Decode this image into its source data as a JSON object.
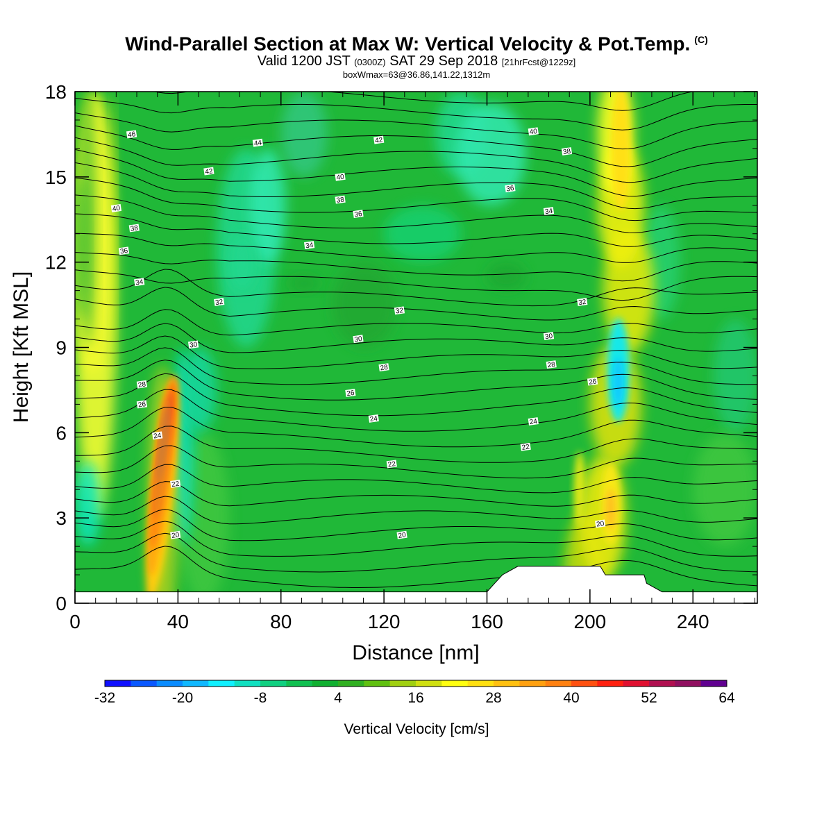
{
  "title": {
    "main": "Wind-Parallel Section at Max W: Vertical Velocity & Pot.Temp.",
    "copyright": "(C)",
    "valid_prefix": "Valid 1200 JST",
    "utc_part": "(0300Z)",
    "valid_date": "SAT 29 Sep 2018",
    "forecast_info": "[21hrFcst@1229z]",
    "box_info": "boxWmax=63@36.86,141.22,1312m"
  },
  "chart_data": {
    "type": "heatmap",
    "xlabel": "Distance [nm]",
    "ylabel": "Height [Kft MSL]",
    "xlim": [
      0,
      265
    ],
    "ylim": [
      0,
      18
    ],
    "x_ticks": [
      0,
      40,
      80,
      120,
      160,
      200,
      240
    ],
    "y_ticks": [
      0,
      3,
      6,
      9,
      12,
      15,
      18
    ],
    "colorbar": {
      "label": "Vertical Velocity [cm/s]",
      "range": [
        -32,
        64
      ],
      "step": 4,
      "tick_labels": [
        "-32",
        "-20",
        "-8",
        "4",
        "16",
        "28",
        "40",
        "52",
        "64"
      ],
      "colors": [
        "#1010ff",
        "#0a58ff",
        "#0a8cff",
        "#10b8ff",
        "#10f0ff",
        "#10e0c0",
        "#10d080",
        "#10c050",
        "#10b030",
        "#30b020",
        "#60c010",
        "#a0d010",
        "#d0e010",
        "#ffff10",
        "#ffe010",
        "#ffc010",
        "#ffa010",
        "#ff8010",
        "#ff5010",
        "#ff2010",
        "#e01030",
        "#b01050",
        "#901060",
        "#600090"
      ]
    },
    "isentrope_labels": [
      {
        "x": 22,
        "y": 16.5,
        "text": "46"
      },
      {
        "x": 71,
        "y": 16.2,
        "text": "44"
      },
      {
        "x": 118,
        "y": 16.3,
        "text": "42"
      },
      {
        "x": 178,
        "y": 16.6,
        "text": "40"
      },
      {
        "x": 52,
        "y": 15.2,
        "text": "42"
      },
      {
        "x": 103,
        "y": 15.0,
        "text": "40"
      },
      {
        "x": 191,
        "y": 15.9,
        "text": "38"
      },
      {
        "x": 16,
        "y": 13.9,
        "text": "40"
      },
      {
        "x": 103,
        "y": 14.2,
        "text": "38"
      },
      {
        "x": 169,
        "y": 14.6,
        "text": "36"
      },
      {
        "x": 184,
        "y": 13.8,
        "text": "34"
      },
      {
        "x": 23,
        "y": 13.2,
        "text": "38"
      },
      {
        "x": 110,
        "y": 13.7,
        "text": "36"
      },
      {
        "x": 19,
        "y": 12.4,
        "text": "36"
      },
      {
        "x": 91,
        "y": 12.6,
        "text": "34"
      },
      {
        "x": 25,
        "y": 11.3,
        "text": "34"
      },
      {
        "x": 56,
        "y": 10.6,
        "text": "32"
      },
      {
        "x": 197,
        "y": 10.6,
        "text": "32"
      },
      {
        "x": 126,
        "y": 10.3,
        "text": "32"
      },
      {
        "x": 46,
        "y": 9.1,
        "text": "30"
      },
      {
        "x": 110,
        "y": 9.3,
        "text": "30"
      },
      {
        "x": 184,
        "y": 9.4,
        "text": "30"
      },
      {
        "x": 26,
        "y": 7.7,
        "text": "28"
      },
      {
        "x": 120,
        "y": 8.3,
        "text": "28"
      },
      {
        "x": 185,
        "y": 8.4,
        "text": "28"
      },
      {
        "x": 26,
        "y": 7.0,
        "text": "26"
      },
      {
        "x": 107,
        "y": 7.4,
        "text": "26"
      },
      {
        "x": 201,
        "y": 7.8,
        "text": "26"
      },
      {
        "x": 32,
        "y": 5.9,
        "text": "24"
      },
      {
        "x": 116,
        "y": 6.5,
        "text": "24"
      },
      {
        "x": 178,
        "y": 6.4,
        "text": "24"
      },
      {
        "x": 175,
        "y": 5.5,
        "text": "22"
      },
      {
        "x": 39,
        "y": 4.2,
        "text": "22"
      },
      {
        "x": 123,
        "y": 4.9,
        "text": "22"
      },
      {
        "x": 39,
        "y": 2.4,
        "text": "20"
      },
      {
        "x": 127,
        "y": 2.4,
        "text": "20"
      },
      {
        "x": 204,
        "y": 2.8,
        "text": "20"
      }
    ],
    "terrain": [
      {
        "x": 0,
        "h": 0.4
      },
      {
        "x": 160,
        "h": 0.4
      },
      {
        "x": 163,
        "h": 0.7
      },
      {
        "x": 166,
        "h": 1.0
      },
      {
        "x": 172,
        "h": 1.3
      },
      {
        "x": 204,
        "h": 1.3
      },
      {
        "x": 206,
        "h": 1.0
      },
      {
        "x": 221,
        "h": 1.0
      },
      {
        "x": 222,
        "h": 0.7
      },
      {
        "x": 228,
        "h": 0.4
      },
      {
        "x": 265,
        "h": 0.4
      }
    ]
  }
}
